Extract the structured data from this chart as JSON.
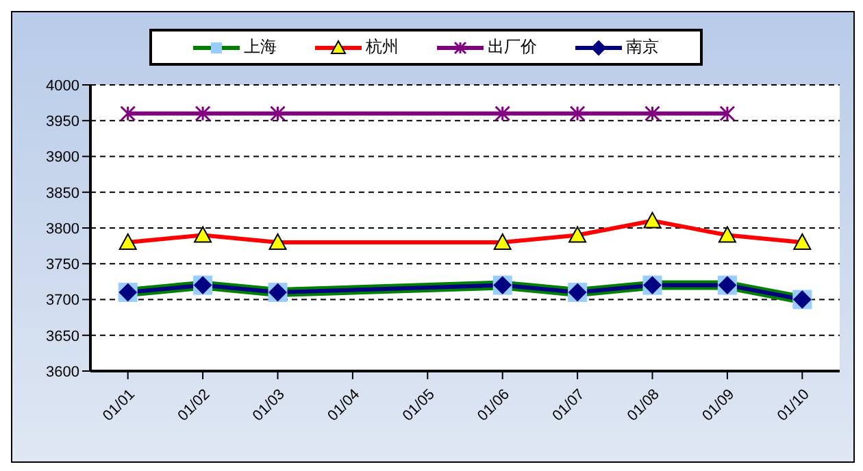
{
  "chart_data": {
    "type": "line",
    "categories": [
      "01/01",
      "01/02",
      "01/03",
      "01/04",
      "01/05",
      "01/06",
      "01/07",
      "01/08",
      "01/09",
      "01/10"
    ],
    "series": [
      {
        "name": "上海",
        "color": "#008000",
        "marker": "square",
        "colors": [
          "#99ccff",
          "#99ccff",
          "#99ccff",
          null,
          null,
          "#99ccff",
          "#99ccff",
          "#99ccff",
          "#99ccff",
          "#99ccff"
        ],
        "values": [
          3710,
          3720,
          3710,
          null,
          null,
          3720,
          3710,
          3720,
          3720,
          3700
        ]
      },
      {
        "name": "杭州",
        "color": "#ff0000",
        "marker": "triangle",
        "colors": [
          "#ffff00",
          "#ffff00",
          "#ffff00",
          null,
          null,
          "#ffff00",
          "#ffff00",
          "#ffff00",
          "#ffff00",
          "#ffff00"
        ],
        "values": [
          3780,
          3790,
          3780,
          null,
          null,
          3780,
          3790,
          3810,
          3790,
          3780
        ]
      },
      {
        "name": "出厂价",
        "color": "#800080",
        "marker": "cross",
        "values": [
          3960,
          3960,
          3960,
          null,
          null,
          3960,
          3960,
          3960,
          3960,
          null
        ]
      },
      {
        "name": "南京",
        "color": "#000080",
        "marker": "diamond",
        "values": [
          3710,
          3720,
          3710,
          null,
          null,
          3720,
          3710,
          3720,
          3720,
          3700
        ]
      }
    ],
    "ylim": [
      3600,
      4000
    ],
    "yticks": [
      3600,
      3650,
      3700,
      3750,
      3800,
      3850,
      3900,
      3950,
      4000
    ],
    "grid": "y",
    "legend": "top"
  }
}
